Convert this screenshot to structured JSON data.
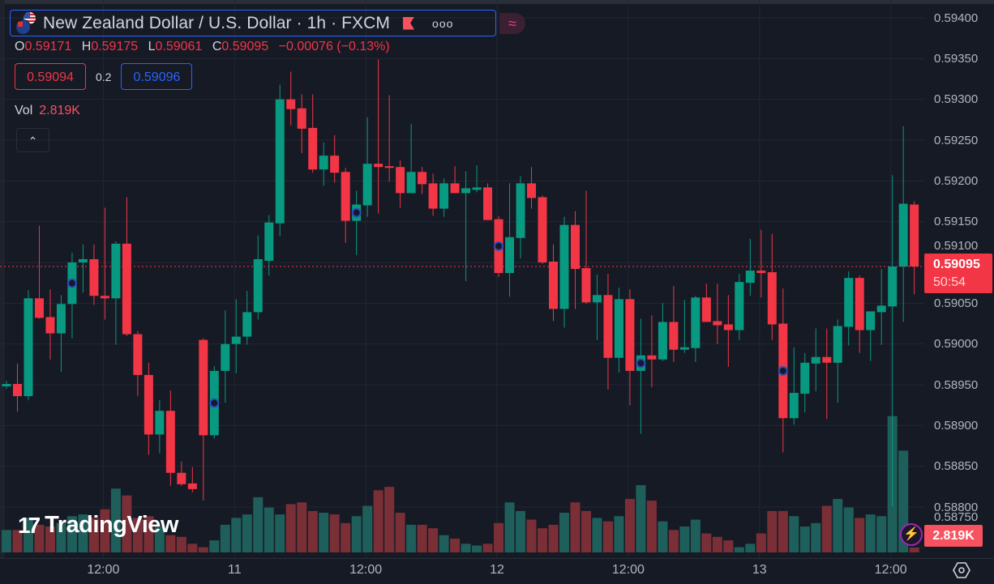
{
  "header": {
    "title": "New Zealand Dollar / U.S. Dollar · 1h · FXCM",
    "more_icon": "ooo",
    "wave_icon": "≈"
  },
  "ohlc": {
    "o_label": "O",
    "o": "0.59171",
    "h_label": "H",
    "h": "0.59175",
    "l_label": "L",
    "l": "0.59061",
    "c_label": "C",
    "c": "0.59095",
    "change": "−0.00076 (−0.13%)"
  },
  "trade": {
    "bid": "0.59094",
    "spread": "0.2",
    "ask": "0.59096"
  },
  "volume_legend": {
    "label": "Vol",
    "value": "2.819K"
  },
  "collapse_icon": "⌃",
  "logo": {
    "mark": "17",
    "name": "TradingView"
  },
  "price_axis": {
    "labels": [
      "0.59400",
      "0.59350",
      "0.59300",
      "0.59250",
      "0.59200",
      "0.59150",
      "0.59100",
      "0.59050",
      "0.59000",
      "0.58950",
      "0.58900",
      "0.58850",
      "0.58800",
      "0.58750"
    ],
    "current_price": "0.59095",
    "countdown": "50:54",
    "current_volume": "2.819K"
  },
  "time_axis": {
    "labels": [
      {
        "text": "12:00",
        "index": 9
      },
      {
        "text": "11",
        "index": 21
      },
      {
        "text": "12:00",
        "index": 33
      },
      {
        "text": "12",
        "index": 45
      },
      {
        "text": "12:00",
        "index": 57
      },
      {
        "text": "13",
        "index": 69
      },
      {
        "text": "12:00",
        "index": 81
      }
    ]
  },
  "colors": {
    "up": "#089981",
    "down": "#f23645",
    "up_volume": "#1e5f5b",
    "down_volume": "#7a2f37",
    "accent": "#2962ff",
    "background": "#161a25"
  },
  "chart_data": {
    "type": "candlestick",
    "title": "New Zealand Dollar / U.S. Dollar · 1h · FXCM",
    "ylim": [
      0.58735,
      0.5942
    ],
    "volume_unit": "K",
    "event_marker_indices": [
      6,
      19,
      32,
      45,
      58,
      71
    ],
    "candles": [
      [
        0.58948,
        0.58955,
        0.58945,
        0.58951,
        13
      ],
      [
        0.58951,
        0.58976,
        0.58917,
        0.58936,
        13
      ],
      [
        0.58936,
        0.59066,
        0.58931,
        0.59056,
        20
      ],
      [
        0.59056,
        0.59145,
        0.59031,
        0.59032,
        16
      ],
      [
        0.59033,
        0.59067,
        0.58981,
        0.59013,
        15
      ],
      [
        0.59013,
        0.5906,
        0.58966,
        0.59049,
        17
      ],
      [
        0.59049,
        0.59112,
        0.59007,
        0.591,
        21
      ],
      [
        0.591,
        0.59122,
        0.59063,
        0.59104,
        22
      ],
      [
        0.59104,
        0.59122,
        0.59048,
        0.59059,
        20
      ],
      [
        0.59059,
        0.59167,
        0.5903,
        0.59056,
        25
      ],
      [
        0.59056,
        0.59126,
        0.58999,
        0.59123,
        37
      ],
      [
        0.59123,
        0.5918,
        0.5901,
        0.59012,
        33
      ],
      [
        0.59012,
        0.59016,
        0.58936,
        0.58962,
        20
      ],
      [
        0.58962,
        0.58977,
        0.58864,
        0.58889,
        21
      ],
      [
        0.58889,
        0.58931,
        0.58866,
        0.58918,
        15
      ],
      [
        0.58918,
        0.58943,
        0.58826,
        0.58842,
        10
      ],
      [
        0.58842,
        0.58856,
        0.58826,
        0.58828,
        9
      ],
      [
        0.58829,
        0.58849,
        0.58818,
        0.58822,
        5
      ],
      [
        0.59005,
        0.59007,
        0.58808,
        0.58888,
        3
      ],
      [
        0.58888,
        0.58973,
        0.58884,
        0.58967,
        7
      ],
      [
        0.58967,
        0.59041,
        0.58928,
        0.59,
        16
      ],
      [
        0.59,
        0.59055,
        0.58964,
        0.59009,
        20
      ],
      [
        0.59009,
        0.59065,
        0.58999,
        0.59039,
        22
      ],
      [
        0.59039,
        0.59133,
        0.5903,
        0.59104,
        32
      ],
      [
        0.59102,
        0.59158,
        0.59084,
        0.59149,
        26
      ],
      [
        0.59148,
        0.59318,
        0.59132,
        0.593,
        22
      ],
      [
        0.593,
        0.59334,
        0.59268,
        0.59288,
        28
      ],
      [
        0.59289,
        0.59306,
        0.59234,
        0.59264,
        29
      ],
      [
        0.59265,
        0.59306,
        0.5921,
        0.59214,
        24
      ],
      [
        0.59214,
        0.59247,
        0.59194,
        0.59231,
        23
      ],
      [
        0.59231,
        0.59256,
        0.59198,
        0.5921,
        22
      ],
      [
        0.59211,
        0.59216,
        0.59124,
        0.59151,
        17
      ],
      [
        0.59151,
        0.59188,
        0.59109,
        0.59171,
        21
      ],
      [
        0.5917,
        0.59278,
        0.59156,
        0.59221,
        27
      ],
      [
        0.59221,
        0.59349,
        0.5916,
        0.59217,
        36
      ],
      [
        0.59218,
        0.59305,
        0.59199,
        0.59216,
        38
      ],
      [
        0.59217,
        0.59225,
        0.59167,
        0.59185,
        23
      ],
      [
        0.59185,
        0.5927,
        0.59185,
        0.59211,
        16
      ],
      [
        0.59211,
        0.59217,
        0.59184,
        0.59196,
        16
      ],
      [
        0.59197,
        0.59209,
        0.59157,
        0.59166,
        14
      ],
      [
        0.59166,
        0.59203,
        0.59156,
        0.59197,
        10
      ],
      [
        0.59197,
        0.59218,
        0.59185,
        0.59185,
        8
      ],
      [
        0.59185,
        0.59212,
        0.59077,
        0.59191,
        5
      ],
      [
        0.59189,
        0.59219,
        0.59186,
        0.59192,
        4
      ],
      [
        0.59192,
        0.59197,
        0.59152,
        0.59152,
        5
      ],
      [
        0.59153,
        0.59157,
        0.59082,
        0.59087,
        17
      ],
      [
        0.59087,
        0.59197,
        0.59058,
        0.59131,
        29
      ],
      [
        0.5913,
        0.59206,
        0.59105,
        0.59197,
        24
      ],
      [
        0.59197,
        0.59217,
        0.59166,
        0.59179,
        19
      ],
      [
        0.5918,
        0.59182,
        0.59098,
        0.591,
        14
      ],
      [
        0.59101,
        0.59122,
        0.59028,
        0.59043,
        16
      ],
      [
        0.59043,
        0.59156,
        0.5902,
        0.59146,
        23
      ],
      [
        0.59146,
        0.59163,
        0.59043,
        0.59092,
        29
      ],
      [
        0.59093,
        0.59188,
        0.59049,
        0.59051,
        24
      ],
      [
        0.59051,
        0.59085,
        0.59005,
        0.5906,
        20
      ],
      [
        0.5906,
        0.59086,
        0.58944,
        0.58983,
        18
      ],
      [
        0.58983,
        0.59069,
        0.58965,
        0.59055,
        21
      ],
      [
        0.59055,
        0.59067,
        0.58925,
        0.58967,
        31
      ],
      [
        0.58967,
        0.59031,
        0.5889,
        0.58986,
        39
      ],
      [
        0.58986,
        0.59035,
        0.58947,
        0.58981,
        30
      ],
      [
        0.58981,
        0.5905,
        0.58979,
        0.59027,
        18
      ],
      [
        0.59027,
        0.59071,
        0.58978,
        0.58993,
        13
      ],
      [
        0.58993,
        0.59054,
        0.58989,
        0.58996,
        15
      ],
      [
        0.58995,
        0.59059,
        0.58978,
        0.59057,
        19
      ],
      [
        0.59057,
        0.59074,
        0.59027,
        0.59027,
        11
      ],
      [
        0.59028,
        0.59074,
        0.59,
        0.59023,
        9
      ],
      [
        0.59024,
        0.5906,
        0.58972,
        0.59017,
        7
      ],
      [
        0.59017,
        0.59086,
        0.59005,
        0.59076,
        3
      ],
      [
        0.59075,
        0.59129,
        0.59059,
        0.5909,
        5
      ],
      [
        0.5909,
        0.5914,
        0.59057,
        0.59087,
        11
      ],
      [
        0.59088,
        0.59135,
        0.59005,
        0.59024,
        24
      ],
      [
        0.59025,
        0.59068,
        0.58867,
        0.58909,
        24
      ],
      [
        0.58909,
        0.58996,
        0.58901,
        0.5894,
        21
      ],
      [
        0.58939,
        0.58989,
        0.58916,
        0.58977,
        15
      ],
      [
        0.58976,
        0.59019,
        0.58942,
        0.58984,
        17
      ],
      [
        0.58984,
        0.59019,
        0.58908,
        0.58977,
        27
      ],
      [
        0.58977,
        0.5903,
        0.58928,
        0.59022,
        31
      ],
      [
        0.59021,
        0.59089,
        0.58998,
        0.59081,
        26
      ],
      [
        0.59081,
        0.59084,
        0.58989,
        0.59017,
        20
      ],
      [
        0.59017,
        0.5904,
        0.58979,
        0.5904,
        22
      ],
      [
        0.59039,
        0.59092,
        0.58999,
        0.59047,
        21
      ],
      [
        0.59046,
        0.59207,
        0.58801,
        0.59095,
        79
      ],
      [
        0.59095,
        0.59267,
        0.59027,
        0.59172,
        59
      ],
      [
        0.59171,
        0.59175,
        0.59061,
        0.59095,
        2.819
      ]
    ]
  }
}
